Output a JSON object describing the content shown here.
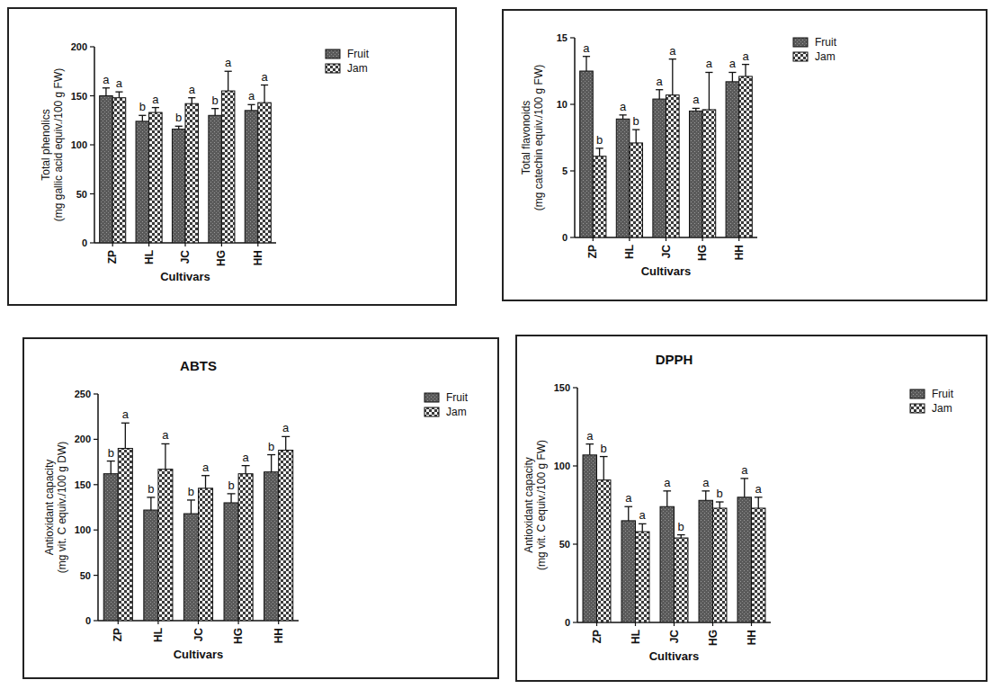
{
  "chart_data": [
    {
      "type": "bar",
      "y_label": [
        "Total phenolics",
        "(mg gallic acid equiv./100 g FW)"
      ],
      "x_label": "Cultivars",
      "categories": [
        "ZP",
        "HL",
        "JC",
        "HG",
        "HH"
      ],
      "series": [
        {
          "name": "Fruit",
          "color": "#5a5a5a",
          "values": [
            150,
            124,
            116,
            130,
            135
          ],
          "errors": [
            8,
            6,
            3,
            7,
            6
          ],
          "letters": [
            "a",
            "b",
            "b",
            "b",
            "a"
          ]
        },
        {
          "name": "Jam",
          "color": "#3a3a3a",
          "values": [
            148,
            133,
            142,
            155,
            143
          ],
          "errors": [
            6,
            5,
            6,
            20,
            18
          ],
          "letters": [
            "a",
            "a",
            "a",
            "a",
            "a"
          ]
        }
      ],
      "ylim": [
        0,
        200
      ],
      "yticks": [
        0,
        50,
        100,
        150,
        200
      ],
      "legend": "right"
    },
    {
      "type": "bar",
      "y_label": [
        "Total flavonoids",
        "(mg catechin equiv./100 g FW)"
      ],
      "x_label": "Cultivars",
      "categories": [
        "ZP",
        "HL",
        "JC",
        "HG",
        "HH"
      ],
      "series": [
        {
          "name": "Fruit",
          "color": "#5a5a5a",
          "values": [
            12.5,
            8.9,
            10.4,
            9.5,
            11.7
          ],
          "errors": [
            1.1,
            0.3,
            0.7,
            0.2,
            0.7
          ],
          "letters": [
            "a",
            "a",
            "a",
            "a",
            "a"
          ]
        },
        {
          "name": "Jam",
          "color": "#3a3a3a",
          "values": [
            6.1,
            7.1,
            10.7,
            9.6,
            12.1
          ],
          "errors": [
            0.6,
            1.0,
            2.7,
            2.8,
            0.9
          ],
          "letters": [
            "b",
            "b",
            "a",
            "a",
            "a"
          ]
        }
      ],
      "ylim": [
        0,
        15
      ],
      "yticks": [
        0,
        5,
        10,
        15
      ],
      "legend": "right"
    },
    {
      "type": "bar",
      "title": "ABTS",
      "y_label": [
        "Antioxidant capacity",
        "(mg vit. C equiv./100 g DW)"
      ],
      "x_label": "Cultivars",
      "categories": [
        "ZP",
        "HL",
        "JC",
        "HG",
        "HH"
      ],
      "series": [
        {
          "name": "Fruit",
          "color": "#5a5a5a",
          "values": [
            162,
            122,
            118,
            130,
            164
          ],
          "errors": [
            14,
            14,
            15,
            10,
            19
          ],
          "letters": [
            "b",
            "b",
            "b",
            "b",
            "b"
          ]
        },
        {
          "name": "Jam",
          "color": "#3a3a3a",
          "values": [
            190,
            167,
            146,
            162,
            188
          ],
          "errors": [
            28,
            28,
            14,
            9,
            15
          ],
          "letters": [
            "a",
            "a",
            "a",
            "a",
            "a"
          ]
        }
      ],
      "ylim": [
        0,
        250
      ],
      "yticks": [
        0,
        50,
        100,
        150,
        200,
        250
      ],
      "legend": "right"
    },
    {
      "type": "bar",
      "title": "DPPH",
      "y_label": [
        "Antioxidant capacity",
        "(mg vit. C equiv./100 g FW)"
      ],
      "x_label": "Cultivars",
      "categories": [
        "ZP",
        "HL",
        "JC",
        "HG",
        "HH"
      ],
      "series": [
        {
          "name": "Fruit",
          "color": "#5a5a5a",
          "values": [
            107,
            65,
            74,
            78,
            80
          ],
          "errors": [
            7,
            9,
            10,
            6,
            12
          ],
          "letters": [
            "a",
            "a",
            "a",
            "a",
            "a"
          ]
        },
        {
          "name": "Jam",
          "color": "#3a3a3a",
          "values": [
            91,
            58,
            54,
            73,
            73
          ],
          "errors": [
            15,
            5,
            2,
            4,
            7
          ],
          "letters": [
            "b",
            "a",
            "b",
            "b",
            "a"
          ]
        }
      ],
      "ylim": [
        0,
        150
      ],
      "yticks": [
        0,
        50,
        100,
        150
      ],
      "legend": "right"
    }
  ]
}
